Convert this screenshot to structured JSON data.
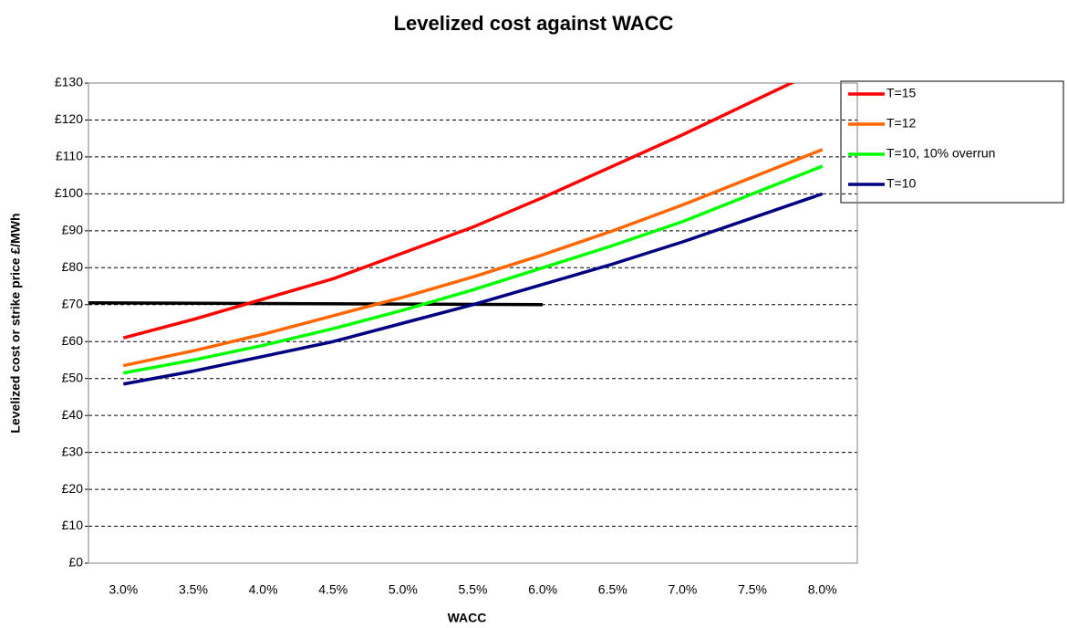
{
  "chart_data": {
    "type": "line",
    "title": "Levelized cost against WACC",
    "x_label": "WACC",
    "y_label": "Levelized cost or strike price £/MWh",
    "x": [
      3.0,
      3.5,
      4.0,
      4.5,
      5.0,
      5.5,
      6.0,
      6.5,
      7.0,
      7.5,
      8.0
    ],
    "series": [
      {
        "name": "T=15",
        "color": "#ff0000",
        "values": [
          61,
          66,
          71.5,
          77,
          84,
          91,
          99,
          107.5,
          116,
          125,
          134
        ]
      },
      {
        "name": "T=12",
        "color": "#ff6600",
        "values": [
          53.5,
          57.5,
          62,
          67,
          72,
          77.5,
          83.5,
          90,
          97,
          104.5,
          112
        ]
      },
      {
        "name": "T=10, 10% overrun",
        "color": "#00ff00",
        "values": [
          51.5,
          55,
          59,
          63.5,
          68.5,
          74,
          80,
          86,
          92.5,
          100,
          107.5
        ]
      },
      {
        "name": "T=10",
        "color": "#000080",
        "values": [
          48.5,
          52,
          56,
          60,
          65,
          70,
          75.5,
          81,
          87,
          93.5,
          100
        ]
      }
    ],
    "reference_line": {
      "color": "#000000",
      "x": [
        2.75,
        6.0
      ],
      "values": [
        70.5,
        70
      ]
    },
    "xlim": [
      2.75,
      8.25
    ],
    "xticks": [
      {
        "value": 3.0,
        "label": "3.0%"
      },
      {
        "value": 3.5,
        "label": "3.5%"
      },
      {
        "value": 4.0,
        "label": "4.0%"
      },
      {
        "value": 4.5,
        "label": "4.5%"
      },
      {
        "value": 5.0,
        "label": "5.0%"
      },
      {
        "value": 5.5,
        "label": "5.5%"
      },
      {
        "value": 6.0,
        "label": "6.0%"
      },
      {
        "value": 6.5,
        "label": "6.5%"
      },
      {
        "value": 7.0,
        "label": "7.0%"
      },
      {
        "value": 7.5,
        "label": "7.5%"
      },
      {
        "value": 8.0,
        "label": "8.0%"
      }
    ],
    "ylim": [
      0,
      130
    ],
    "yticks": [
      {
        "value": 0,
        "label": "£0"
      },
      {
        "value": 10,
        "label": "£10"
      },
      {
        "value": 20,
        "label": "£20"
      },
      {
        "value": 30,
        "label": "£30"
      },
      {
        "value": 40,
        "label": "£40"
      },
      {
        "value": 50,
        "label": "£50"
      },
      {
        "value": 60,
        "label": "£60"
      },
      {
        "value": 70,
        "label": "£70"
      },
      {
        "value": 80,
        "label": "£80"
      },
      {
        "value": 90,
        "label": "£90"
      },
      {
        "value": 100,
        "label": "£100"
      },
      {
        "value": 110,
        "label": "£110"
      },
      {
        "value": 120,
        "label": "£120"
      },
      {
        "value": 130,
        "label": "£130"
      }
    ],
    "grid": true,
    "legend": "right"
  }
}
